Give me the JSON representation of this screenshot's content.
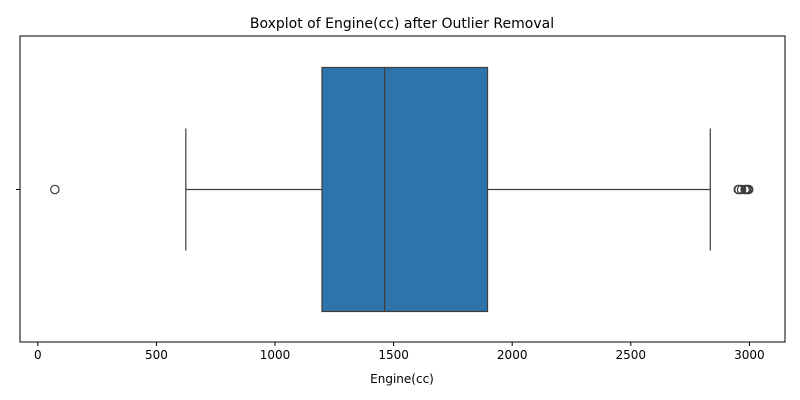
{
  "chart_data": {
    "type": "boxplot",
    "title": "Boxplot of Engine(cc) after Outlier Removal",
    "xlabel": "Engine(cc)",
    "ylabel": "",
    "xlim": [
      -75,
      3150
    ],
    "xticks": [
      0,
      500,
      1000,
      1500,
      2000,
      2500,
      3000
    ],
    "orientation": "horizontal",
    "grid": false,
    "box": {
      "q1": 1198,
      "median": 1462,
      "q3": 1896,
      "whisker_low": 624,
      "whisker_high": 2835,
      "outliers": [
        72,
        2953,
        2956,
        2967,
        2982,
        2987,
        2993,
        2997
      ]
    },
    "colors": {
      "box_fill": "#2f73ab",
      "line": "#3d3d3d",
      "axis": "#000000"
    }
  }
}
